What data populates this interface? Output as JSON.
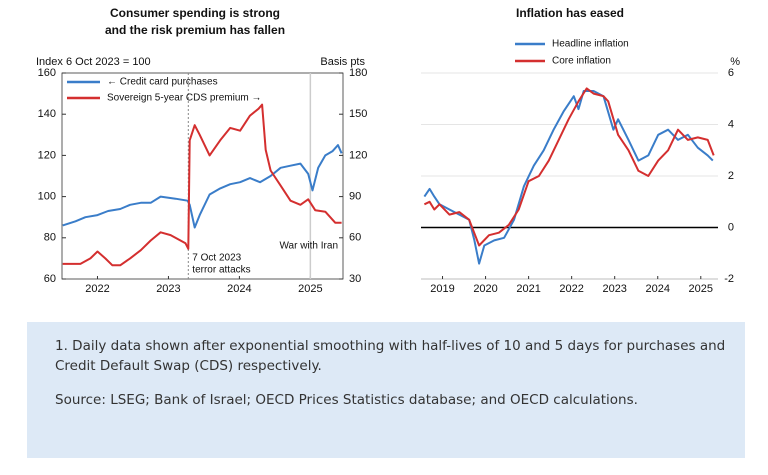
{
  "chart_data": [
    {
      "type": "line",
      "title": [
        "Consumer spending is strong",
        "and the risk premium has fallen"
      ],
      "y_label": "Index 6 Oct 2023 = 100",
      "y2_label": "Basis pts",
      "xlim": [
        2022,
        2025.96
      ],
      "xticks": [
        {
          "value": 2022.5,
          "label": "2022"
        },
        {
          "value": 2023.5,
          "label": "2023"
        },
        {
          "value": 2024.5,
          "label": "2024"
        },
        {
          "value": 2025.5,
          "label": "2025"
        }
      ],
      "ylim": [
        60,
        160
      ],
      "yticks": [
        60,
        80,
        100,
        120,
        140,
        160
      ],
      "y2lim": [
        30,
        180
      ],
      "y2ticks": [
        30,
        60,
        90,
        120,
        150,
        180
      ],
      "grid": false,
      "frame": true,
      "legend": "top-left",
      "series": [
        {
          "name": "← Credit card purchases",
          "color": "#3a7dc9",
          "x": [
            2022.01,
            2022.19,
            2022.33,
            2022.5,
            2022.65,
            2022.82,
            2022.96,
            2023.11,
            2023.25,
            2023.39,
            2023.6,
            2023.77,
            2023.8,
            2023.87,
            2023.94,
            2024.08,
            2024.23,
            2024.37,
            2024.51,
            2024.65,
            2024.79,
            2024.94,
            2025.08,
            2025.22,
            2025.36,
            2025.47,
            2025.53,
            2025.61,
            2025.71,
            2025.81,
            2025.89,
            2025.94
          ],
          "values": [
            86,
            88,
            90,
            91,
            93,
            94,
            96,
            97,
            97,
            100,
            99,
            98,
            96,
            85,
            91,
            101,
            104,
            106,
            107,
            109,
            107,
            110,
            114,
            115,
            116,
            111,
            103,
            114,
            120,
            122,
            125,
            121
          ]
        },
        {
          "name": "Sovereign 5-year CDS premium →",
          "color": "#d42f2f",
          "axis": "y2",
          "x": [
            2022.01,
            2022.26,
            2022.4,
            2022.5,
            2022.61,
            2022.71,
            2022.82,
            2022.96,
            2023.11,
            2023.25,
            2023.39,
            2023.53,
            2023.74,
            2023.78,
            2023.8,
            2023.87,
            2023.94,
            2024.08,
            2024.23,
            2024.37,
            2024.51,
            2024.65,
            2024.77,
            2024.82,
            2024.87,
            2024.94,
            2025.08,
            2025.22,
            2025.36,
            2025.47,
            2025.57,
            2025.71,
            2025.85,
            2025.94
          ],
          "values": [
            41,
            41,
            45,
            50,
            45,
            40,
            40,
            45,
            51,
            58,
            64,
            62,
            56,
            52,
            131,
            142,
            135,
            120,
            131,
            140,
            138,
            149,
            154,
            157,
            124,
            109,
            98,
            87,
            84,
            88,
            80,
            79,
            71,
            71
          ]
        }
      ],
      "annotations": [
        {
          "x": 2023.78,
          "style": "dotted",
          "anchor": "start",
          "lines": [
            "7 Oct 2023",
            "terror attacks"
          ]
        },
        {
          "x": 2025.5,
          "style": "solid",
          "anchor": "end",
          "lines": [
            "War with Iran"
          ]
        }
      ]
    },
    {
      "type": "line",
      "title": [
        "Inflation has eased"
      ],
      "y2_label": "%",
      "xlim": [
        2019,
        2025.9
      ],
      "xticks": [
        {
          "value": 2019.5,
          "label": "2019"
        },
        {
          "value": 2020.5,
          "label": "2020"
        },
        {
          "value": 2021.5,
          "label": "2021"
        },
        {
          "value": 2022.5,
          "label": "2022"
        },
        {
          "value": 2023.5,
          "label": "2023"
        },
        {
          "value": 2024.5,
          "label": "2024"
        },
        {
          "value": 2025.5,
          "label": "2025"
        }
      ],
      "y2lim": [
        -2,
        6
      ],
      "y2ticks": [
        -2,
        0,
        2,
        4,
        6
      ],
      "grid": true,
      "frame": false,
      "zero_line": true,
      "legend": "top",
      "series": [
        {
          "name": "Headline inflation",
          "color": "#3a7dc9",
          "axis": "y2",
          "x": [
            2019.08,
            2019.2,
            2019.31,
            2019.43,
            2019.66,
            2019.89,
            2020.12,
            2020.24,
            2020.35,
            2020.47,
            2020.7,
            2020.93,
            2021.16,
            2021.39,
            2021.62,
            2021.85,
            2022.08,
            2022.31,
            2022.55,
            2022.66,
            2022.78,
            2023.01,
            2023.24,
            2023.47,
            2023.58,
            2023.82,
            2024.05,
            2024.28,
            2024.51,
            2024.74,
            2024.97,
            2025.2,
            2025.43,
            2025.66,
            2025.78
          ],
          "values": [
            1.2,
            1.5,
            1.2,
            0.9,
            0.7,
            0.5,
            0.3,
            -0.5,
            -1.4,
            -0.7,
            -0.5,
            -0.4,
            0.3,
            1.6,
            2.4,
            3.0,
            3.8,
            4.5,
            5.1,
            4.6,
            5.3,
            5.3,
            5.1,
            3.8,
            4.2,
            3.4,
            2.6,
            2.8,
            3.6,
            3.8,
            3.4,
            3.6,
            3.1,
            2.8,
            2.6
          ]
        },
        {
          "name": "Core inflation",
          "color": "#d42f2f",
          "axis": "y2",
          "x": [
            2019.08,
            2019.2,
            2019.31,
            2019.43,
            2019.66,
            2019.89,
            2020.12,
            2020.35,
            2020.58,
            2020.81,
            2021.04,
            2021.27,
            2021.5,
            2021.74,
            2021.97,
            2022.2,
            2022.43,
            2022.66,
            2022.85,
            2023.01,
            2023.24,
            2023.35,
            2023.58,
            2023.82,
            2024.05,
            2024.28,
            2024.51,
            2024.74,
            2024.97,
            2025.2,
            2025.43,
            2025.66,
            2025.8
          ],
          "values": [
            0.9,
            1.0,
            0.7,
            0.9,
            0.5,
            0.6,
            0.3,
            -0.7,
            -0.3,
            -0.2,
            0.1,
            0.7,
            1.8,
            2.0,
            2.6,
            3.4,
            4.2,
            4.9,
            5.4,
            5.2,
            5.1,
            4.9,
            3.6,
            3.0,
            2.2,
            2.0,
            2.6,
            3.0,
            3.8,
            3.4,
            3.5,
            3.4,
            2.8
          ]
        }
      ]
    }
  ],
  "notes": {
    "footnote": "1. Daily data shown after exponential smoothing with half-lives of 10 and 5 days for purchases and Credit Default Swap (CDS) respectively.",
    "source": "Source: LSEG; Bank of Israel; OECD Prices Statistics database; and OECD calculations."
  }
}
